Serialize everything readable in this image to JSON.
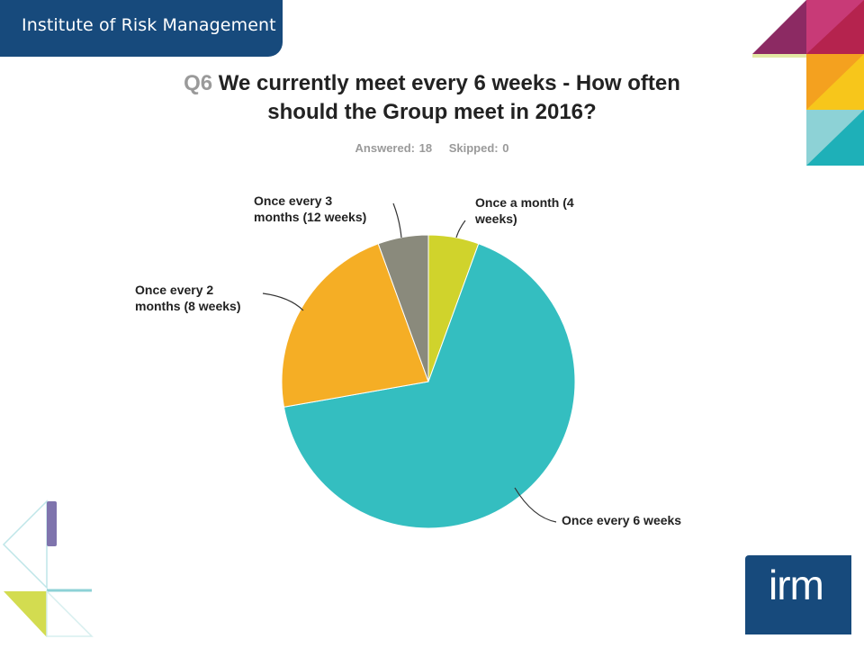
{
  "header": {
    "org_name": "Institute of Risk Management"
  },
  "logo": {
    "text": "irm"
  },
  "colors": {
    "brand_navy": "#174a7c",
    "deco_purple": "#8c2a63",
    "deco_crimson": "#b5234e",
    "deco_orange": "#f4a11f",
    "deco_yellow": "#f7c61b",
    "deco_teal": "#1eb0b8",
    "deco_lightteal": "#8dd2d6",
    "deco_lime": "#d3dc50"
  },
  "chart_data": {
    "type": "pie",
    "question_number": "Q6",
    "title": "We currently meet every 6 weeks - How often should the Group meet in 2016?",
    "stats": {
      "answered": "Answered: 18",
      "skipped": "Skipped: 0"
    },
    "slices": [
      {
        "label": "Once a month (4 weeks)",
        "value": 1,
        "color": "#d0d32c"
      },
      {
        "label": "Once every 6 weeks",
        "value": 12,
        "color": "#34bec0"
      },
      {
        "label": "Once every 2 months (8 weeks)",
        "value": 4,
        "color": "#f5ae25"
      },
      {
        "label": "Once every 3 months (12 weeks)",
        "value": 1,
        "color": "#8a8a7c"
      }
    ]
  }
}
